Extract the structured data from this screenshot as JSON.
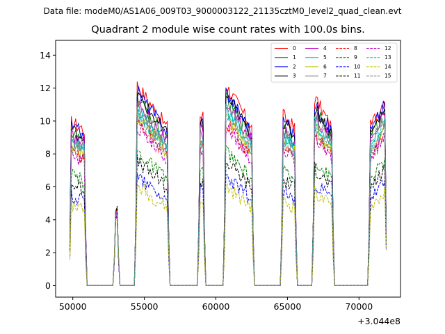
{
  "figure": {
    "suptitle": "Data file: modeM0/AS1A06_009T03_9000003122_21135cztM0_level2_quad_clean.evt"
  },
  "chart_data": {
    "type": "line",
    "title": "Quadrant 2 module wise count rates with 100.0s bins.",
    "xlabel": "",
    "ylabel": "",
    "x_offset_label": "+3.044e8",
    "xlim": [
      48800,
      72900
    ],
    "ylim": [
      -0.7,
      14.9
    ],
    "xticks": [
      50000,
      55000,
      60000,
      65000,
      70000
    ],
    "xtick_labels": [
      "50000",
      "55000",
      "60000",
      "65000",
      "70000"
    ],
    "yticks": [
      0,
      2,
      4,
      6,
      8,
      10,
      12,
      14
    ],
    "ytick_labels": [
      "0",
      "2",
      "4",
      "6",
      "8",
      "10",
      "12",
      "14"
    ],
    "grid": false,
    "legend_position": "top-right",
    "segments": [
      {
        "start": 49800,
        "end": 50900,
        "decay": 0.05
      },
      {
        "start": 52900,
        "end": 53200,
        "decay": 0.0,
        "spike": true
      },
      {
        "start": 54400,
        "end": 56700,
        "decay": 0.3
      },
      {
        "start": 58800,
        "end": 59200,
        "decay": 0.0
      },
      {
        "start": 60600,
        "end": 62600,
        "decay": 0.3
      },
      {
        "start": 64600,
        "end": 65600,
        "decay": 0.1
      },
      {
        "start": 66800,
        "end": 68200,
        "decay": 0.22
      },
      {
        "start": 70700,
        "end": 71900,
        "decay": -0.08
      }
    ],
    "series": [
      {
        "name": "0",
        "color": "#ff0000",
        "dash": "solid",
        "level": 10.3
      },
      {
        "name": "1",
        "color": "#008000",
        "dash": "solid",
        "level": 9.6
      },
      {
        "name": "2",
        "color": "#0000ff",
        "dash": "solid",
        "level": 10.0
      },
      {
        "name": "3",
        "color": "#000000",
        "dash": "solid",
        "level": 9.8
      },
      {
        "name": "4",
        "color": "#bf00bf",
        "dash": "solid",
        "level": 9.4
      },
      {
        "name": "5",
        "color": "#00bfbf",
        "dash": "solid",
        "level": 9.0
      },
      {
        "name": "6",
        "color": "#bfbf00",
        "dash": "solid",
        "level": 8.7
      },
      {
        "name": "7",
        "color": "#808080",
        "dash": "solid",
        "level": 9.2
      },
      {
        "name": "8",
        "color": "#ff0000",
        "dash": "dashed",
        "level": 8.4
      },
      {
        "name": "9",
        "color": "#008000",
        "dash": "dashed",
        "level": 6.9
      },
      {
        "name": "10",
        "color": "#0000ff",
        "dash": "dashed",
        "level": 5.6
      },
      {
        "name": "11",
        "color": "#000000",
        "dash": "dashed",
        "level": 6.4
      },
      {
        "name": "12",
        "color": "#bf00bf",
        "dash": "dashed",
        "level": 8.2
      },
      {
        "name": "13",
        "color": "#00bfbf",
        "dash": "dashed",
        "level": 8.9
      },
      {
        "name": "14",
        "color": "#bfbf00",
        "dash": "dashed",
        "level": 5.1
      },
      {
        "name": "15",
        "color": "#808080",
        "dash": "dashed",
        "level": 8.6
      }
    ]
  }
}
